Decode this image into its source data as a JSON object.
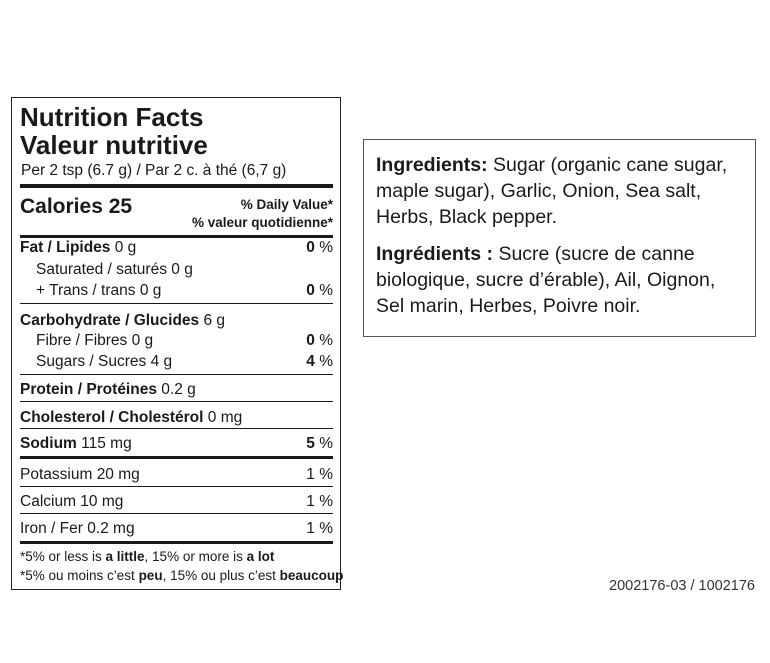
{
  "nutrition": {
    "title_en": "Nutrition Facts",
    "title_fr": "Valeur nutritive",
    "serving": "Per 2 tsp (6.7 g) / Par 2 c. à thé (6,7 g)",
    "calories": "Calories 25",
    "dv_en": "% Daily Value*",
    "dv_fr": "% valeur quotidienne*",
    "rows": [
      {
        "name": "Fat / Lipides",
        "amount": "0 g",
        "dv": "0",
        "pct": "%"
      },
      {
        "name": "Saturated / saturés",
        "amount": "0 g"
      },
      {
        "name": "+ Trans / trans",
        "amount": "0 g",
        "dv": "0",
        "pct": "%"
      },
      {
        "name": "Carbohydrate / Glucides",
        "amount": "6 g"
      },
      {
        "name": "Fibre / Fibres",
        "amount": "0 g",
        "dv": "0",
        "pct": "%"
      },
      {
        "name": "Sugars / Sucres",
        "amount": "4 g",
        "dv": "4",
        "pct": "%"
      },
      {
        "name": "Protein / Protéines",
        "amount": "0.2 g"
      },
      {
        "name": "Cholesterol / Cholestérol",
        "amount": "0 mg"
      },
      {
        "name": "Sodium",
        "amount": "115 mg",
        "dv": "5",
        "pct": "%"
      },
      {
        "name": "Potassium",
        "amount": "20 mg",
        "dv": "1",
        "pct": "%"
      },
      {
        "name": "Calcium",
        "amount": "10 mg",
        "dv": "1",
        "pct": "%"
      },
      {
        "name": "Iron / Fer",
        "amount": "0.2 mg",
        "dv": "1",
        "pct": "%"
      }
    ],
    "footnotes": [
      [
        "*5% or less is ",
        "a little",
        ", 15% or more is ",
        "a lot"
      ],
      [
        "*5% ou moins c’est ",
        "peu",
        ", 15% ou plus c’est ",
        "beaucoup"
      ]
    ]
  },
  "ingredients": {
    "en": {
      "label": "Ingredients:",
      "text": "Sugar (organic cane sugar, maple sugar), Garlic, Onion, Sea salt, Herbs, Black pepper."
    },
    "fr": {
      "label": "Ingrédients :",
      "text": "Sucre (sucre de canne biologique, sucre d’érable), Ail, Oignon, Sel marin, Herbes, Poivre noir."
    }
  },
  "product_code": "2002176-03 / 1002176"
}
